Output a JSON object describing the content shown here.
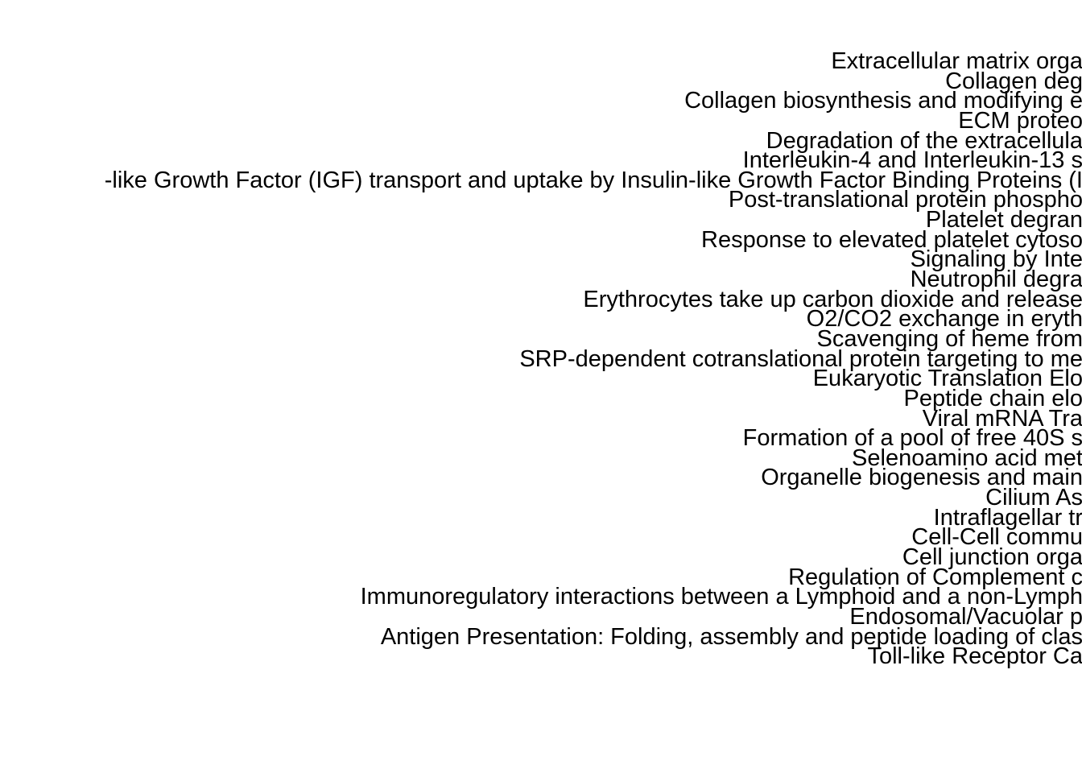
{
  "chart_data": {
    "type": "bar",
    "categories": [
      "Extracellular matrix orga",
      "Collagen deg",
      "Collagen biosynthesis and modifying e",
      "ECM proteo",
      "Degradation of the extracellula",
      "Interleukin-4 and Interleukin-13 s",
      "-like Growth Factor (IGF) transport and uptake by Insulin-like Growth Factor Binding Proteins (I",
      "Post-translational protein phospho",
      "Platelet degran",
      "Response to elevated platelet cytoso",
      "Signaling by Inte",
      "Neutrophil degra",
      "Erythrocytes take up carbon dioxide and release",
      "O2/CO2 exchange in eryth",
      "Scavenging of heme from",
      "SRP-dependent cotranslational protein targeting to me",
      "Eukaryotic Translation Elo",
      "Peptide chain elo",
      "Viral mRNA Tra",
      "Formation of a pool of free 40S s",
      "Selenoamino acid met",
      "Organelle biogenesis and main",
      "Cilium As",
      "Intraflagellar tr",
      "Cell-Cell commu",
      "Cell junction orga",
      "Regulation of Complement c",
      "Immunoregulatory interactions between a Lymphoid and a non-Lymph",
      "Endosomal/Vacuolar p",
      "Antigen Presentation: Folding, assembly and peptide loading of clas",
      "Toll-like Receptor Ca"
    ]
  }
}
